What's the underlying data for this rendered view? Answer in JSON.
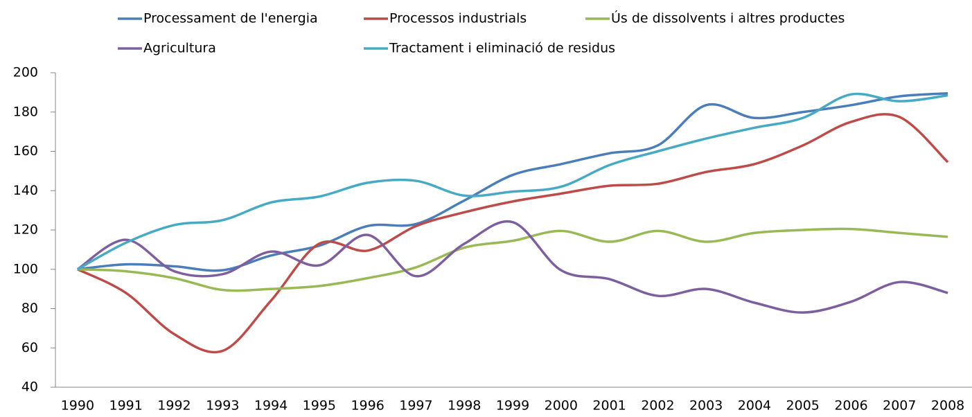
{
  "chart_data": {
    "type": "line",
    "categories": [
      "1990",
      "1991",
      "1992",
      "1993",
      "1994",
      "1995",
      "1996",
      "1997",
      "1998",
      "1999",
      "2000",
      "2001",
      "2002",
      "2003",
      "2004",
      "2005",
      "2006",
      "2007",
      "2008"
    ],
    "series": [
      {
        "name": "Processament de l'energia",
        "color": "#4a7ebb",
        "values": [
          100,
          102.5,
          101.5,
          99.5,
          107,
          112,
          122,
          123,
          135,
          148,
          153.5,
          159,
          163,
          183.5,
          177,
          180,
          183.5,
          188,
          189.5
        ]
      },
      {
        "name": "Processos industrials",
        "color": "#be4b48",
        "values": [
          100,
          88,
          67,
          58.5,
          84,
          113,
          109.5,
          122,
          129,
          134.5,
          138.5,
          142.5,
          143.5,
          149.5,
          153.5,
          163,
          175,
          177.5,
          154.5
        ]
      },
      {
        "name": "Ús de dissolvents i altres productes",
        "color": "#98b954",
        "values": [
          100,
          99,
          95.5,
          89.5,
          90,
          91.5,
          95.5,
          101,
          111,
          114.5,
          119.5,
          114,
          119.5,
          114,
          118.5,
          120,
          120.5,
          118.5,
          116.5
        ]
      },
      {
        "name": "Agricultura",
        "color": "#7d5fa0",
        "values": [
          100,
          115,
          99,
          97.5,
          109,
          102,
          117.5,
          96.5,
          113,
          124,
          99.5,
          95,
          86.5,
          90,
          83,
          78,
          83.5,
          93.5,
          88
        ]
      },
      {
        "name": "Tractament i eliminació de residus",
        "color": "#46aac5",
        "values": [
          100,
          113.5,
          122.5,
          125,
          134,
          137,
          144,
          145,
          137.5,
          139.5,
          142,
          153,
          160,
          166.5,
          172,
          177,
          189,
          185.5,
          188.5
        ]
      }
    ],
    "ylim": [
      40,
      200
    ],
    "yticks": [
      40,
      60,
      80,
      100,
      120,
      140,
      160,
      180,
      200
    ],
    "grid": false,
    "smooth": true
  }
}
